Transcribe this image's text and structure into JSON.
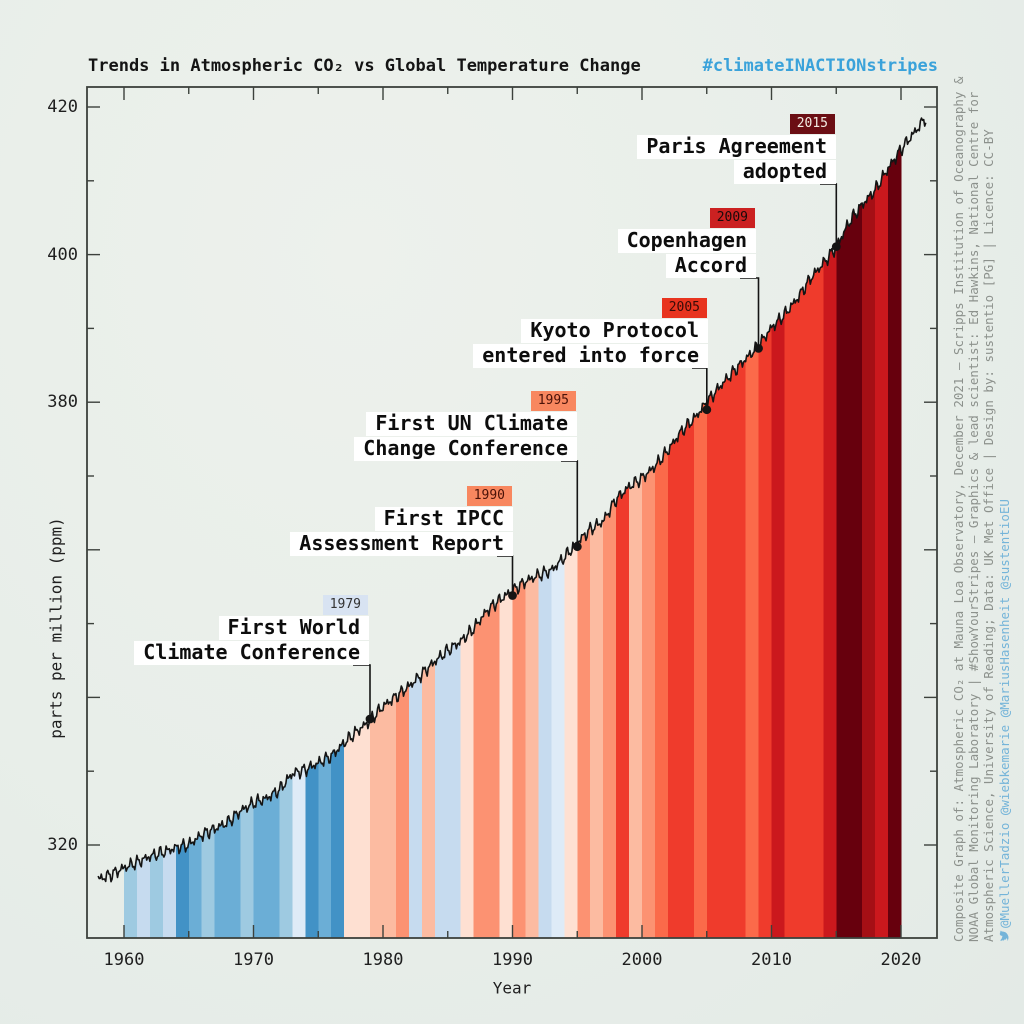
{
  "title": "Trends in Atmospheric CO₂ vs Global Temperature Change",
  "hashtag": "#climateINACTIONstripes",
  "colors": {
    "hashtag_blue": "#3aa2da",
    "curve": "#141414",
    "frame": "#3c413c",
    "background": "#e8eee9",
    "annotation_bg": "#ffffff",
    "annotation_text": "#0d0d0d",
    "credit_gray": "#8c918c",
    "credit_blue": "#74b4d9"
  },
  "axes": {
    "x_label": "Year",
    "y_label": "parts per million (ppm)"
  },
  "chart_data": {
    "type": "line",
    "subtype": "keeling-curve over warming-stripes fill",
    "title": "Trends in Atmospheric CO₂ vs Global Temperature Change",
    "xlabel": "Year",
    "ylabel": "parts per million (ppm)",
    "x_range": [
      1957.1,
      2022.8
    ],
    "y_range": [
      307.4,
      422.7
    ],
    "x_ticks_major": [
      1960,
      1970,
      1980,
      1990,
      2000,
      2010,
      2020
    ],
    "x_ticks_minor": [
      1965,
      1975,
      1985,
      1995,
      2005,
      2015
    ],
    "y_ticks_major": [
      320,
      340,
      360,
      380,
      400,
      420
    ],
    "y_ticks_minor": [
      330,
      350,
      370,
      390,
      410
    ],
    "y_tick_labels_shown": [
      420,
      400,
      380,
      320
    ],
    "grid": false,
    "co2_annual": {
      "years": [
        1958,
        1959,
        1960,
        1961,
        1962,
        1963,
        1964,
        1965,
        1966,
        1967,
        1968,
        1969,
        1970,
        1971,
        1972,
        1973,
        1974,
        1975,
        1976,
        1977,
        1978,
        1979,
        1980,
        1981,
        1982,
        1983,
        1984,
        1985,
        1986,
        1987,
        1988,
        1989,
        1990,
        1991,
        1992,
        1993,
        1994,
        1995,
        1996,
        1997,
        1998,
        1999,
        2000,
        2001,
        2002,
        2003,
        2004,
        2005,
        2006,
        2007,
        2008,
        2009,
        2010,
        2011,
        2012,
        2013,
        2014,
        2015,
        2016,
        2017,
        2018,
        2019,
        2020,
        2021
      ],
      "ppm": [
        315.34,
        315.98,
        316.91,
        317.64,
        318.45,
        318.99,
        319.62,
        320.04,
        321.37,
        322.18,
        323.05,
        324.62,
        325.68,
        326.32,
        327.46,
        329.68,
        330.19,
        331.12,
        332.03,
        333.84,
        335.41,
        336.84,
        338.76,
        340.12,
        341.48,
        343.15,
        344.87,
        346.35,
        347.61,
        349.31,
        351.69,
        353.2,
        354.45,
        355.7,
        356.54,
        357.21,
        358.96,
        360.97,
        362.74,
        363.88,
        366.84,
        368.54,
        369.71,
        371.32,
        373.45,
        375.98,
        377.7,
        379.98,
        382.09,
        384.02,
        385.83,
        387.64,
        390.1,
        391.85,
        394.06,
        396.74,
        398.81,
        401.01,
        404.41,
        406.76,
        408.72,
        411.66,
        414.24,
        416.45
      ]
    },
    "stripes": {
      "start_year": 1960,
      "end_year": 2019,
      "colors": [
        "#9ecae1",
        "#c6dbef",
        "#9ecae1",
        "#c6dbef",
        "#4292c6",
        "#6baed6",
        "#9ecae1",
        "#6baed6",
        "#6baed6",
        "#9ecae1",
        "#6baed6",
        "#6baed6",
        "#9ecae1",
        "#deebf7",
        "#4292c6",
        "#6baed6",
        "#4292c6",
        "#fee0d2",
        "#fee0d2",
        "#fcbba1",
        "#fcbba1",
        "#fc9272",
        "#c6dbef",
        "#fcbba1",
        "#c6dbef",
        "#c6dbef",
        "#fee0d2",
        "#fc9272",
        "#fc9272",
        "#fee0d2",
        "#fc9272",
        "#fcbba1",
        "#c6dbef",
        "#deebf7",
        "#fee0d2",
        "#fc9272",
        "#fcbba1",
        "#fc9272",
        "#ef3b2c",
        "#fcbba1",
        "#fc9272",
        "#fb6a4a",
        "#ef3b2c",
        "#ef3b2c",
        "#fb6a4a",
        "#ef3b2c",
        "#ef3b2c",
        "#ef3b2c",
        "#fb6a4a",
        "#ef3b2c",
        "#cb181d",
        "#ef3b2c",
        "#ef3b2c",
        "#ef3b2c",
        "#cb181d",
        "#67000d",
        "#67000d",
        "#a50f15",
        "#cb181d",
        "#67000d"
      ]
    }
  },
  "events": [
    {
      "badge": "1979",
      "lines": [
        "First World",
        "Climate Conference"
      ],
      "anchor_year": 1979,
      "badge_bg": "#d8e3f2",
      "badge_fg": "#333333"
    },
    {
      "badge": "1990",
      "lines": [
        "First IPCC",
        "Assessment Report"
      ],
      "anchor_year": 1990,
      "badge_bg": "#f8875f",
      "badge_fg": "#4a1208"
    },
    {
      "badge": "1995",
      "lines": [
        "First UN Climate",
        "Change Conference"
      ],
      "anchor_year": 1995,
      "badge_bg": "#f8875f",
      "badge_fg": "#4a1208"
    },
    {
      "badge": "2005",
      "lines": [
        "Kyoto Protocol",
        "entered into force"
      ],
      "anchor_year": 2005,
      "badge_bg": "#e8341f",
      "badge_fg": "#380c08"
    },
    {
      "badge": "2009",
      "lines": [
        "Copenhagen",
        "Accord"
      ],
      "anchor_year": 2009,
      "badge_bg": "#cb2121",
      "badge_fg": "#1a0a0a"
    },
    {
      "badge": "2015",
      "lines": [
        "Paris Agreement",
        "adopted"
      ],
      "anchor_year": 2015,
      "badge_bg": "#6b0e14",
      "badge_fg": "#f3ece3"
    }
  ],
  "credits": {
    "line1": "Composite Graph of: Atmospheric CO₂ at Mauna Loa Observatory, December 2021 – Scripps Institution of Oceanography &",
    "line2": "NOAA Global Monitoring Laboratory | #ShowYourStripes – Graphics & lead scientist: Ed Hawkins, National Centre for",
    "line3": "Atmospheric Science, University of Reading; Data: UK Met Office | Design by: sustentio [PG] | Licence: CC-BY",
    "handles": "@MuellerTadzio @wiebkemarie @MariusHasenheit @sustentioEU"
  }
}
